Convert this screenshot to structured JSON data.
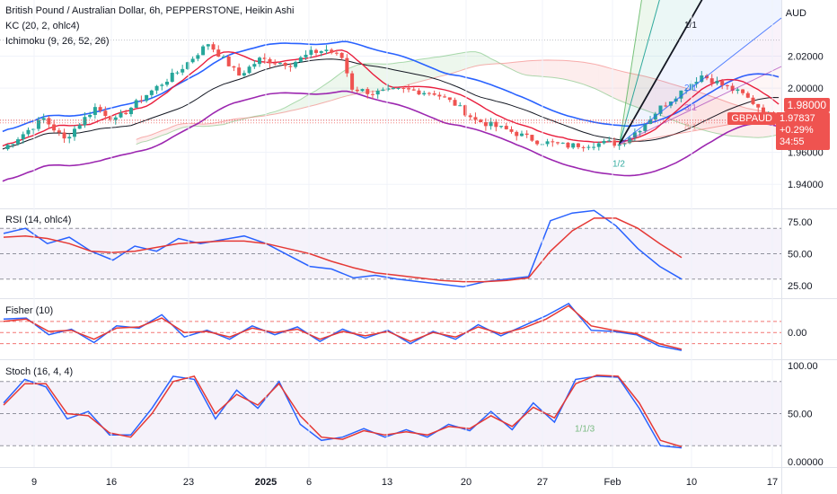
{
  "header": {
    "title": "British Pound / Australian Dollar, 6h, PEPPERSTONE, Heikin Ashi",
    "currency": "AUD",
    "kc": "KC (20, 2, ohlc4)",
    "ichimoku": "Ichimoku (9, 26, 52, 26)"
  },
  "price_tag": {
    "level": "1.98000",
    "symbol": "GBPAUD",
    "last": "1.97837",
    "change": "+0.29%",
    "countdown": "34:55"
  },
  "panes": {
    "rsi": "RSI (14, ohlc4)",
    "fisher": "Fisher (10)",
    "stoch": "Stoch (16, 4, 4)"
  },
  "colors": {
    "bull": "#26a69a",
    "bear": "#ef5350",
    "kc": "#2962ff",
    "tenkan": "#e91e3d",
    "kijun": "#131722",
    "lagging": "#9c27b0",
    "rsi": "#2962ff",
    "rsi_ma": "#e53935",
    "fan": "#2962ff"
  },
  "chart_data": [
    {
      "type": "candlestick",
      "title": "British Pound / Australian Dollar, 6h, PEPPERSTONE, Heikin Ashi",
      "ylim": [
        1.925,
        2.055
      ],
      "yticks": [
        "2.02000",
        "2.00000",
        "1.98000",
        "1.96000",
        "1.94000"
      ],
      "xticks": [
        "9",
        "16",
        "23",
        "2025",
        "6",
        "13",
        "20",
        "27",
        "Feb",
        "10",
        "17"
      ],
      "price_path": [
        [
          0,
          1.962
        ],
        [
          8,
          1.981
        ],
        [
          12,
          1.968
        ],
        [
          18,
          1.988
        ],
        [
          22,
          1.98
        ],
        [
          28,
          1.996
        ],
        [
          34,
          2.01
        ],
        [
          40,
          2.028
        ],
        [
          46,
          2.008
        ],
        [
          50,
          2.018
        ],
        [
          56,
          2.015
        ],
        [
          60,
          2.022
        ],
        [
          63,
          2.024
        ],
        [
          66,
          2.019
        ],
        [
          68,
          2.0
        ],
        [
          72,
          1.997
        ],
        [
          78,
          1.999
        ],
        [
          84,
          1.997
        ],
        [
          88,
          1.99
        ],
        [
          92,
          1.98
        ],
        [
          98,
          1.974
        ],
        [
          104,
          1.967
        ],
        [
          110,
          1.964
        ],
        [
          114,
          1.965
        ],
        [
          118,
          1.966
        ],
        [
          120,
          1.965
        ],
        [
          124,
          1.975
        ],
        [
          128,
          1.988
        ],
        [
          132,
          1.998
        ],
        [
          136,
          2.008
        ],
        [
          140,
          2.002
        ],
        [
          144,
          1.996
        ],
        [
          148,
          1.986
        ],
        [
          151,
          1.978
        ]
      ],
      "fan_labels": [
        "1/1/3",
        "1/2",
        "1/1",
        "2/1",
        "3/1",
        "8/1"
      ],
      "last_price": 1.97837,
      "marked_level": 1.98
    },
    {
      "type": "line",
      "title": "RSI (14, ohlc4)",
      "yticks": [
        "75.00",
        "50.00",
        "25.00"
      ],
      "ylim": [
        15,
        85
      ],
      "bands": [
        30,
        50,
        70
      ],
      "series": [
        {
          "values": [
            66,
            70,
            58,
            63,
            52,
            45,
            56,
            52,
            62,
            58,
            61,
            64,
            58,
            49,
            40,
            38,
            31,
            33,
            30,
            28,
            26,
            24,
            28,
            30,
            32,
            76,
            82,
            84,
            72,
            54,
            40,
            30
          ]
        },
        {
          "values": [
            63,
            64,
            62,
            58,
            52,
            51,
            52,
            55,
            58,
            59,
            60,
            60,
            58,
            54,
            50,
            44,
            39,
            35,
            33,
            31,
            29,
            28,
            28,
            29,
            31,
            52,
            68,
            78,
            78,
            70,
            58,
            47
          ]
        }
      ]
    },
    {
      "type": "line",
      "title": "Fisher (10)",
      "yticks": [
        "0.00"
      ],
      "ylim": [
        -2.4,
        3.0
      ],
      "levels": [
        1.0,
        0.0,
        -1.0
      ],
      "series": [
        {
          "values": [
            1.2,
            1.3,
            -0.2,
            0.3,
            -0.9,
            0.6,
            0.4,
            1.6,
            -0.4,
            0.2,
            -0.6,
            0.6,
            -0.2,
            0.5,
            -0.8,
            0.3,
            -0.5,
            0.2,
            -1.0,
            0.1,
            -0.6,
            0.7,
            -0.3,
            0.6,
            1.5,
            2.6,
            0.2,
            0.1,
            -0.2,
            -1.2,
            -1.6
          ]
        },
        {
          "values": [
            1.0,
            1.2,
            0.1,
            0.2,
            -0.6,
            0.4,
            0.5,
            1.3,
            0.0,
            0.1,
            -0.4,
            0.4,
            0.0,
            0.3,
            -0.6,
            0.1,
            -0.3,
            0.1,
            -0.8,
            0.0,
            -0.4,
            0.5,
            -0.1,
            0.4,
            1.2,
            2.4,
            0.6,
            0.2,
            -0.1,
            -1.0,
            -1.5
          ]
        }
      ]
    },
    {
      "type": "line",
      "title": "Stoch (16, 4, 4)",
      "yticks": [
        "100.00",
        "50.00",
        "0.00000"
      ],
      "ylim": [
        0,
        100
      ],
      "bands": [
        20,
        50,
        80
      ],
      "series": [
        {
          "values": [
            60,
            82,
            75,
            45,
            52,
            30,
            30,
            55,
            85,
            82,
            45,
            72,
            55,
            80,
            40,
            25,
            28,
            36,
            28,
            35,
            28,
            40,
            34,
            52,
            35,
            60,
            42,
            82,
            85,
            84,
            55,
            20,
            18
          ]
        },
        {
          "values": [
            58,
            78,
            78,
            50,
            48,
            32,
            28,
            50,
            80,
            85,
            50,
            68,
            58,
            78,
            48,
            28,
            26,
            34,
            30,
            33,
            30,
            38,
            36,
            48,
            38,
            56,
            46,
            78,
            86,
            85,
            60,
            25,
            19
          ]
        }
      ]
    }
  ]
}
